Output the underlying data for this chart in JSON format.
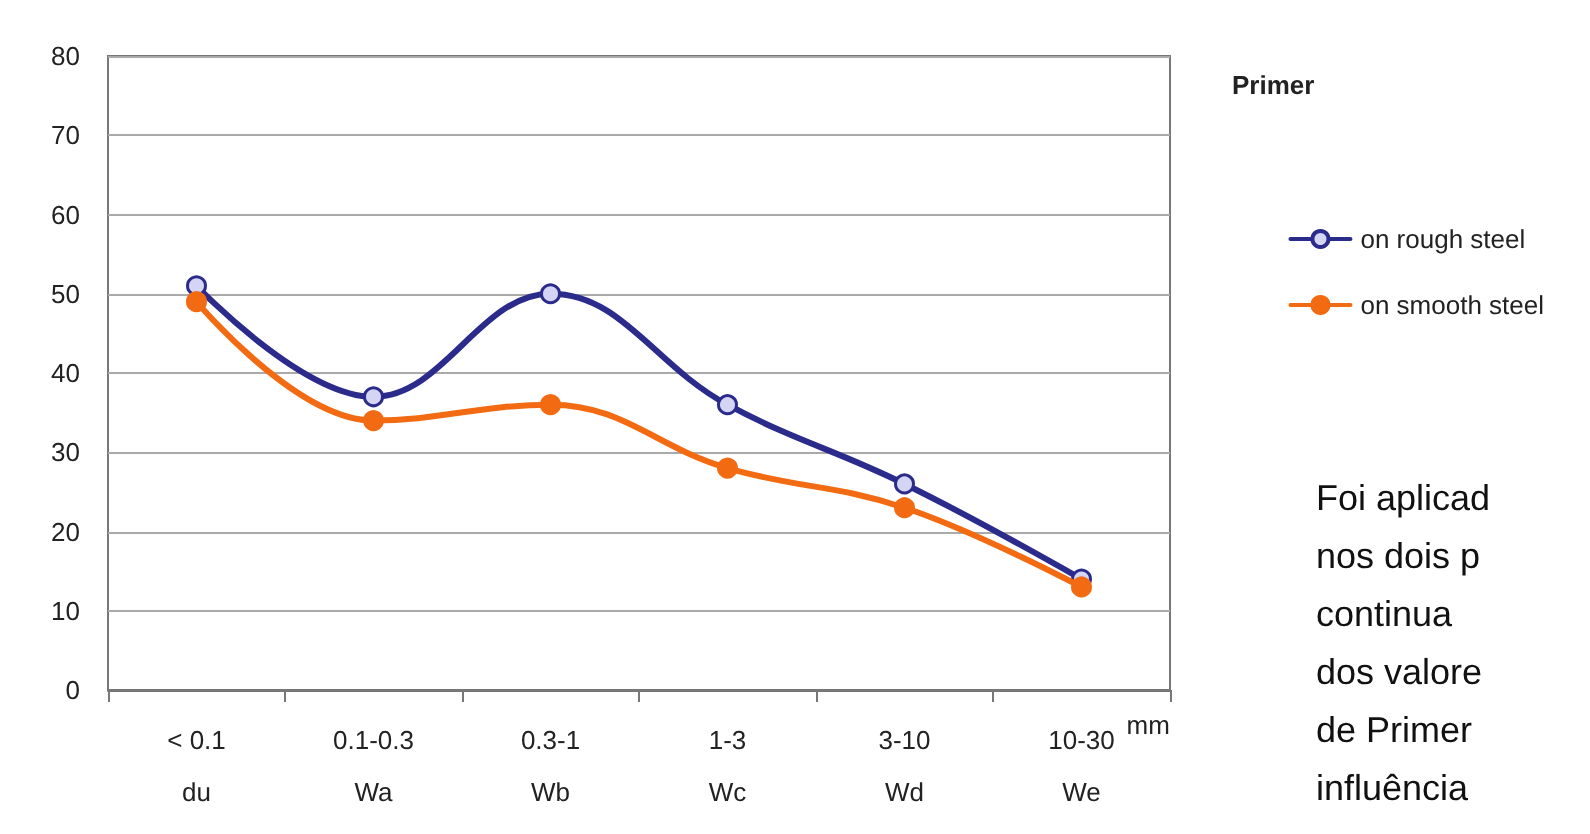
{
  "chart_data": {
    "type": "line",
    "categories": [
      "< 0.1\ndu",
      "0.1-0.3\nWa",
      "0.3-1\nWb",
      "1-3\nWc",
      "3-10\nWd",
      "10-30\nWe"
    ],
    "xlabel": "mm",
    "legend_title": "Primer",
    "series": [
      {
        "name": "on rough steel",
        "color": "#2b2b8c",
        "values": [
          51,
          37,
          50,
          36,
          26,
          14
        ]
      },
      {
        "name": "on smooth steel",
        "color": "#f26b12",
        "values": [
          49,
          34,
          36,
          28,
          23,
          13
        ]
      }
    ],
    "ylim": [
      0,
      80
    ],
    "yticks": [
      0,
      10,
      20,
      30,
      40,
      50,
      60,
      70,
      80
    ],
    "grid": "y",
    "legend": "right",
    "marker": "circle",
    "line_style": "solid",
    "annotations": [
      "Foi aplicad",
      "nos dois p",
      "continua",
      "dos valore",
      "de Primer",
      "influência"
    ]
  }
}
